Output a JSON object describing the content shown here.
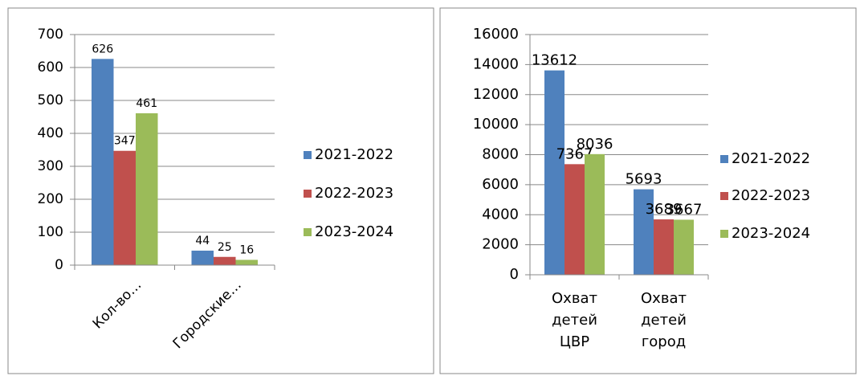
{
  "chart_data": [
    {
      "type": "bar",
      "categories": [
        "Кол-во…",
        "Городские…"
      ],
      "series": [
        {
          "name": "2021-2022",
          "color": "#4f81bd",
          "values": [
            626,
            44
          ]
        },
        {
          "name": "2022-2023",
          "color": "#c0504d",
          "values": [
            347,
            25
          ]
        },
        {
          "name": "2023-2024",
          "color": "#9bbb59",
          "values": [
            461,
            16
          ]
        }
      ],
      "ylim": [
        0,
        700
      ],
      "yticks": [
        0,
        100,
        200,
        300,
        400,
        500,
        600,
        700
      ],
      "grid": true,
      "legend": "right"
    },
    {
      "type": "bar",
      "categories": [
        "Охват детей ЦВР",
        "Охват детей город"
      ],
      "series": [
        {
          "name": "2021-2022",
          "color": "#4f81bd",
          "values": [
            13612,
            5693
          ]
        },
        {
          "name": "2022-2023",
          "color": "#c0504d",
          "values": [
            7367,
            3689
          ]
        },
        {
          "name": "2023-2024",
          "color": "#9bbb59",
          "values": [
            8036,
            3667
          ]
        }
      ],
      "ylim": [
        0,
        16000
      ],
      "yticks": [
        0,
        2000,
        4000,
        6000,
        8000,
        10000,
        12000,
        14000,
        16000
      ],
      "grid": true,
      "legend": "right"
    }
  ]
}
